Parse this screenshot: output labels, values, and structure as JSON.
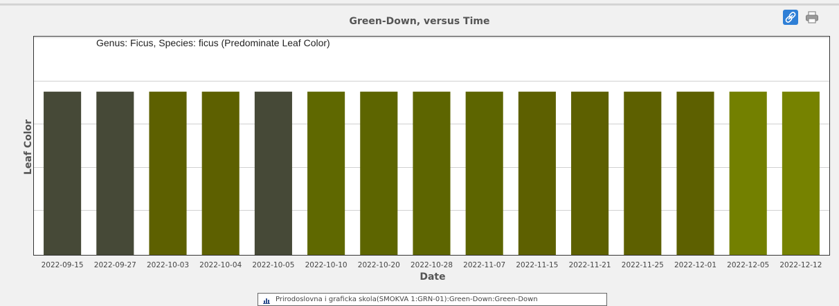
{
  "chart_data": {
    "type": "bar",
    "title": "Green-Down, versus Time",
    "subtitle": "Genus: Ficus, Species: ficus (Predominate Leaf Color)",
    "xlabel": "Date",
    "ylabel": "Leaf Color",
    "grid": true,
    "categories": [
      "2022-09-15",
      "2022-09-27",
      "2022-10-03",
      "2022-10-04",
      "2022-10-05",
      "2022-10-10",
      "2022-10-20",
      "2022-10-28",
      "2022-11-07",
      "2022-11-15",
      "2022-11-21",
      "2022-11-25",
      "2022-12-01",
      "2022-12-05",
      "2022-12-12"
    ],
    "values": [
      1,
      1,
      1,
      1,
      1,
      1,
      1,
      1,
      1,
      1,
      1,
      1,
      1,
      1,
      1
    ],
    "ylim": [
      0,
      1.34
    ],
    "bar_colors": [
      "#464937",
      "#464937",
      "#5d6000",
      "#5d6000",
      "#464937",
      "#5f6800",
      "#5d6500",
      "#5d6500",
      "#5d6500",
      "#5d6000",
      "#5d6000",
      "#5d6000",
      "#5d6000",
      "#738000",
      "#768200"
    ],
    "legend": {
      "placement": "bottom-center",
      "entries": [
        "Prirodoslovna i graficka skola(SMOKVA 1:GRN-01):Green-Down:Green-Down"
      ]
    }
  },
  "toolbar": {
    "link_icon": "link-icon",
    "print_icon": "printer-icon"
  },
  "colors": {
    "grid": "#d0d0d0",
    "axis_text": "#555555",
    "link_button": "#2f7fd6"
  }
}
